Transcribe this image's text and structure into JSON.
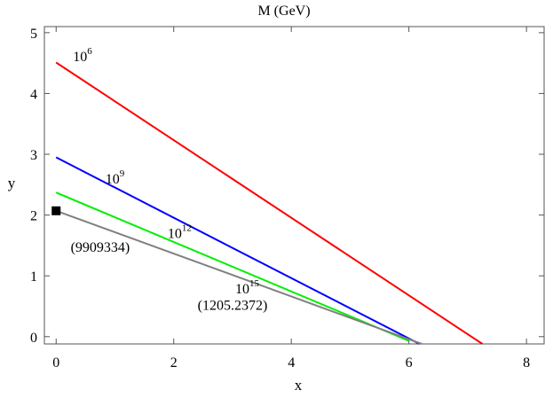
{
  "chart_data": {
    "type": "line",
    "title": "M (GeV)",
    "xlabel": "x",
    "ylabel": "y",
    "xlim": [
      -0.2,
      8.3
    ],
    "ylim": [
      -0.12,
      5.1
    ],
    "xticks": [
      0,
      2,
      4,
      6,
      8
    ],
    "yticks": [
      0,
      1,
      2,
      3,
      4,
      5
    ],
    "grid": false,
    "series": [
      {
        "color": "#ff0000",
        "x": [
          0,
          7.25
        ],
        "y": [
          4.51,
          -0.12
        ]
      },
      {
        "color": "#0000ff",
        "x": [
          0,
          6.18
        ],
        "y": [
          2.95,
          -0.12
        ]
      },
      {
        "color": "#00ee00",
        "x": [
          0,
          6.0
        ],
        "y": [
          2.37,
          -0.07
        ]
      },
      {
        "color": "#808080",
        "x": [
          0,
          6.22
        ],
        "y": [
          2.07,
          -0.12
        ]
      }
    ],
    "marker": {
      "shape": "square",
      "x": 0,
      "y": 2.07,
      "color": "#000000"
    },
    "annotations": [
      {
        "base": "10",
        "exp": "6",
        "x": 0.45,
        "y": 4.53
      },
      {
        "base": "10",
        "exp": "9",
        "x": 1.0,
        "y": 2.52
      },
      {
        "base": "10",
        "exp": "12",
        "x": 2.1,
        "y": 1.62
      },
      {
        "base": "(9909334)",
        "exp": "",
        "x": 0.75,
        "y": 1.4
      },
      {
        "base": "10",
        "exp": "15",
        "x": 3.25,
        "y": 0.71
      },
      {
        "base": "(1205.2372)",
        "exp": "",
        "x": 3.0,
        "y": 0.44
      }
    ]
  }
}
